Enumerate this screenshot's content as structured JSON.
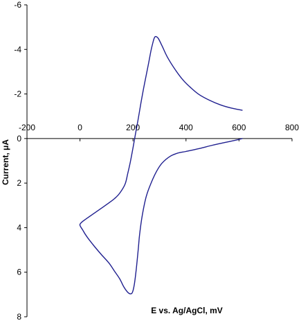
{
  "chart_data": {
    "type": "line",
    "xlabel": "E vs. Ag/AgCl, mV",
    "ylabel": "Current, μA",
    "xlim": [
      -200,
      800
    ],
    "ylim": [
      -6,
      8
    ],
    "y_inverted": true,
    "x_ticks": [
      -200,
      0,
      200,
      400,
      600,
      800
    ],
    "y_ticks": [
      -6,
      -4,
      -2,
      0,
      2,
      4,
      6,
      8
    ],
    "grid": false,
    "line_color": "#1f1f8f",
    "axis_color": "#000000",
    "series": [
      {
        "x": [
          612,
          570,
          530,
          490,
          450,
          420,
          390,
          360,
          330,
          310,
          295,
          285,
          280,
          275,
          268,
          260,
          250,
          240,
          230,
          220,
          210,
          200,
          190,
          180,
          170,
          150,
          130,
          110,
          90,
          60,
          30,
          10,
          0,
          2,
          10,
          20,
          35,
          55,
          80,
          110,
          130,
          150,
          165,
          180,
          190,
          198,
          205,
          212,
          220,
          225,
          235,
          250,
          270,
          290,
          310,
          340,
          370,
          400,
          450,
          500,
          550,
          600,
          612
        ],
        "y": [
          -1.27,
          -1.37,
          -1.51,
          -1.71,
          -1.97,
          -2.26,
          -2.61,
          -3.08,
          -3.65,
          -4.15,
          -4.5,
          -4.58,
          -4.5,
          -4.3,
          -3.95,
          -3.45,
          -2.85,
          -2.25,
          -1.6,
          -0.9,
          -0.25,
          0.42,
          1.05,
          1.58,
          2.05,
          2.45,
          2.7,
          2.88,
          3.05,
          3.3,
          3.55,
          3.72,
          3.85,
          3.95,
          4.1,
          4.3,
          4.55,
          4.85,
          5.2,
          5.6,
          5.95,
          6.3,
          6.65,
          6.9,
          6.97,
          6.9,
          6.55,
          5.9,
          4.95,
          4.3,
          3.45,
          2.6,
          1.95,
          1.45,
          1.1,
          0.8,
          0.65,
          0.58,
          0.45,
          0.3,
          0.17,
          0.04,
          0.0
        ]
      }
    ]
  }
}
